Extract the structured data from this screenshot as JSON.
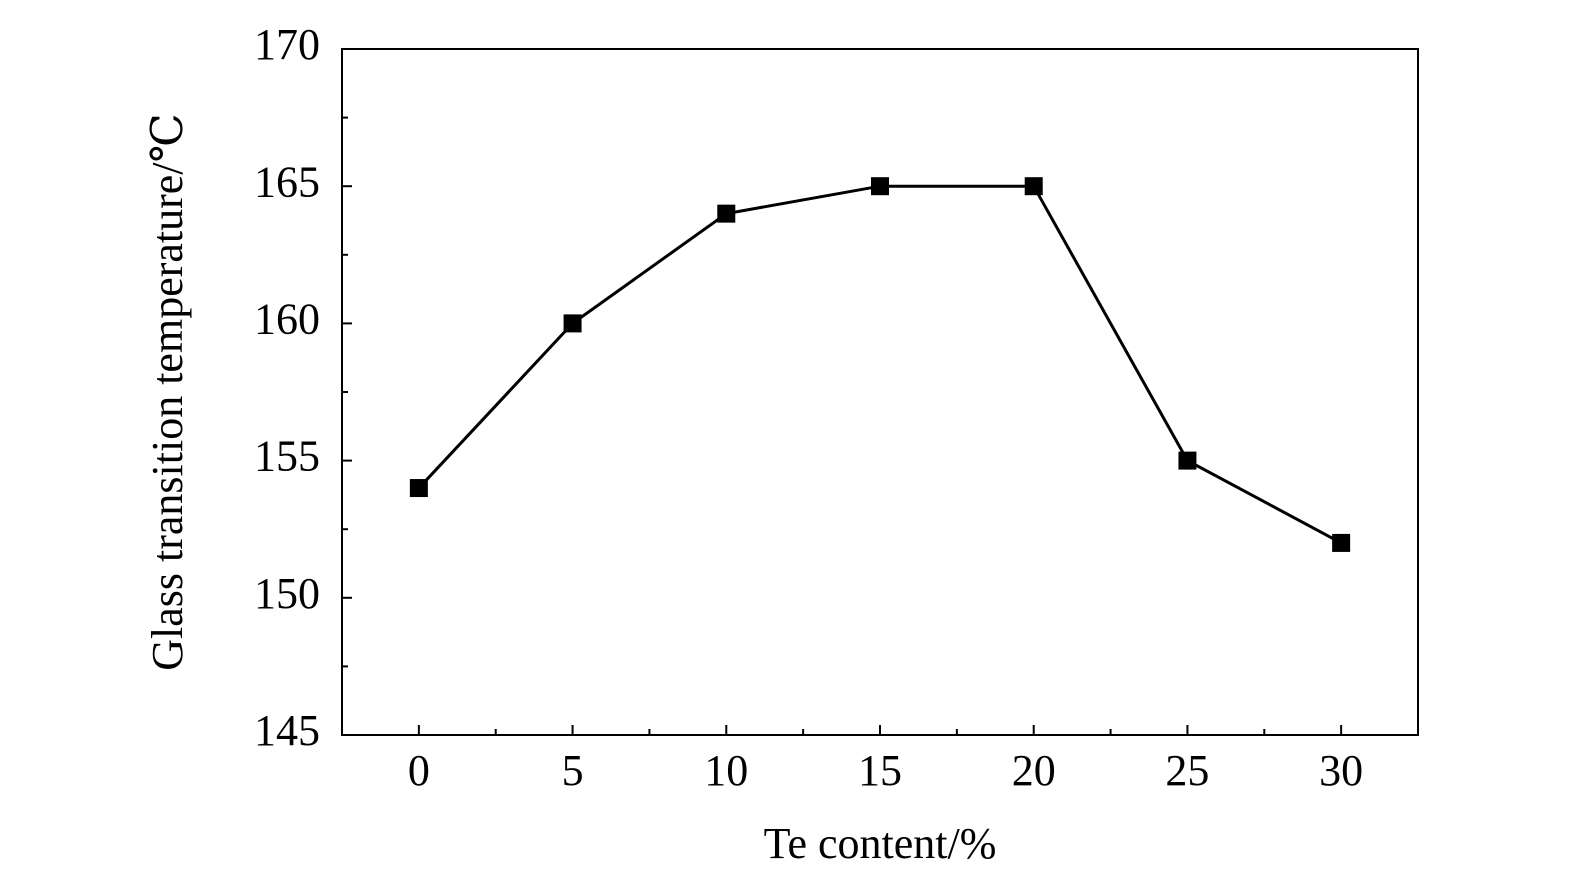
{
  "chart_data": {
    "type": "line",
    "x_label": "Te content/%",
    "y_label": "Glass transition temperature/℃",
    "x": [
      0,
      5,
      10,
      15,
      20,
      25,
      30
    ],
    "series": [
      {
        "color": "#000000",
        "marker": "square",
        "values": [
          154,
          160,
          164,
          165,
          165,
          155,
          152
        ]
      }
    ],
    "xlim": [
      -2.5,
      32.5
    ],
    "xticks": [
      0,
      5,
      10,
      15,
      20,
      25,
      30
    ],
    "ylim": [
      145,
      170
    ],
    "yticks": [
      145,
      150,
      155,
      160,
      165,
      170
    ],
    "grid": false
  }
}
